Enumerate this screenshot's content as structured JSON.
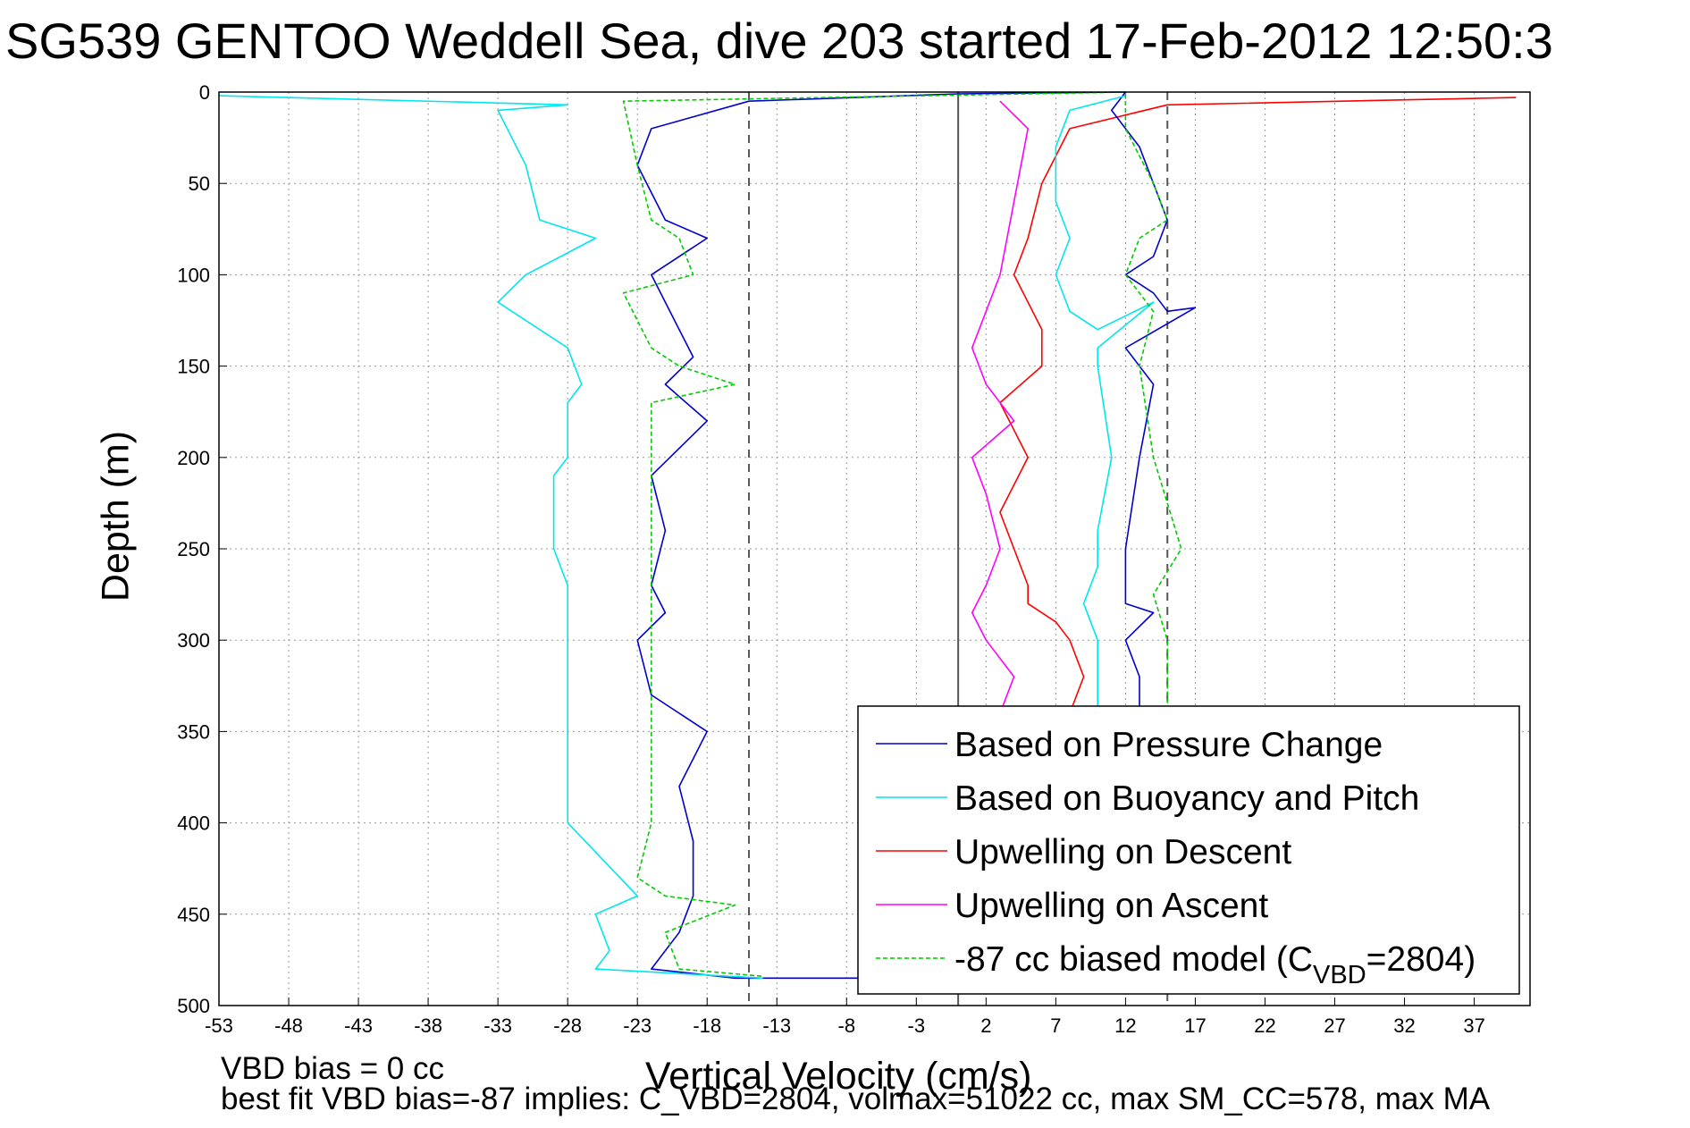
{
  "title": "SG539 GENTOO Weddell Sea, dive 203 started 17-Feb-2012 12:50:3",
  "notes": {
    "line1": "VBD bias = 0 cc",
    "line2": "best fit VBD bias=-87 implies: C_VBD=2804, volmax=51022 cc, max SM_CC=578, max MA"
  },
  "chart_data": {
    "type": "line",
    "title": "SG539 GENTOO Weddell Sea, dive 203 started 17-Feb-2012 12:50:3",
    "xlabel": "Vertical Velocity (cm/s)",
    "ylabel": "Depth (m)",
    "xlim": [
      -53,
      41
    ],
    "ylim": [
      500,
      0
    ],
    "y_reversed": true,
    "grid": true,
    "xticks": [
      "-53",
      "-48",
      "-43",
      "-38",
      "-33",
      "-28",
      "-23",
      "-18",
      "-13",
      "-8",
      "-3",
      "2",
      "7",
      "12",
      "17",
      "22",
      "27",
      "32",
      "37"
    ],
    "yticks": [
      "0",
      "50",
      "100",
      "150",
      "200",
      "250",
      "300",
      "350",
      "400",
      "450",
      "500"
    ],
    "reference_lines": [
      {
        "x": -15,
        "style": "dashed",
        "color": "#555555"
      },
      {
        "x": 0,
        "style": "solid",
        "color": "#555555"
      },
      {
        "x": 15,
        "style": "dashed",
        "color": "#555555"
      }
    ],
    "legend_position": "lower-right",
    "series": [
      {
        "name": "Based on Pressure Change",
        "color": "#0000cc",
        "dash": "solid",
        "x": [
          12,
          0,
          -15,
          -22,
          -23,
          -21,
          -18,
          -22,
          -20,
          -19,
          -21,
          -18,
          -22,
          -21,
          -22,
          -21,
          -23,
          -22,
          -18,
          -20,
          -19,
          -19,
          -20,
          -22,
          -16,
          -7
        ],
        "y": [
          0,
          1,
          5,
          20,
          40,
          70,
          80,
          100,
          130,
          145,
          160,
          180,
          210,
          240,
          270,
          285,
          300,
          330,
          350,
          380,
          410,
          440,
          460,
          480,
          485,
          485
        ]
      },
      {
        "name": "Based on Buoyancy and Pitch",
        "color": "#00e5ee",
        "dash": "solid",
        "x": [
          -53,
          -28,
          -33,
          -31,
          -30,
          -26,
          -31,
          -33,
          -28,
          -27,
          -28,
          -28,
          -29,
          -29,
          -28,
          -28,
          -28,
          -23,
          -26,
          -25,
          -26,
          -14
        ],
        "y": [
          2,
          7,
          10,
          40,
          70,
          80,
          100,
          115,
          140,
          160,
          170,
          200,
          210,
          250,
          270,
          300,
          400,
          440,
          450,
          470,
          480,
          485
        ]
      },
      {
        "name": "Upwelling on Descent",
        "color": "#ff0000",
        "dash": "solid",
        "x": [
          40,
          15,
          8,
          6,
          5,
          4,
          6,
          6,
          3,
          5,
          3,
          4,
          5,
          5,
          7,
          8,
          9,
          8,
          8
        ],
        "y": [
          3,
          7,
          20,
          50,
          80,
          100,
          130,
          150,
          170,
          200,
          230,
          250,
          270,
          280,
          290,
          300,
          320,
          340,
          350
        ]
      },
      {
        "name": "Upwelling on Ascent",
        "color": "#ff00ff",
        "dash": "solid",
        "x": [
          3,
          5,
          4,
          3,
          1,
          2,
          4,
          1,
          2,
          3,
          2,
          1,
          2,
          4,
          3
        ],
        "y": [
          5,
          20,
          60,
          100,
          140,
          160,
          180,
          200,
          220,
          250,
          270,
          285,
          300,
          320,
          340
        ]
      },
      {
        "name": "-87 cc biased model (C_VBD=2804)",
        "color": "#00cc00",
        "dash": "dashed",
        "x": [
          12,
          -24,
          -23,
          -22,
          -20,
          -19,
          -24,
          -22,
          -20,
          -16,
          -22,
          -22,
          -22,
          -22,
          -22,
          -22,
          -23,
          -21,
          -16,
          -21,
          -20,
          -14
        ],
        "y": [
          0,
          5,
          40,
          70,
          80,
          100,
          110,
          140,
          150,
          160,
          170,
          250,
          270,
          300,
          350,
          400,
          430,
          440,
          445,
          460,
          480,
          484
        ]
      },
      {
        "name": "",
        "color": "#0000cc",
        "dash": "solid",
        "x": [
          12,
          11,
          13,
          14,
          15,
          14,
          12,
          14,
          15,
          17,
          12,
          14,
          13,
          12,
          12,
          14,
          12,
          13,
          13
        ],
        "y": [
          0,
          10,
          30,
          50,
          70,
          90,
          100,
          110,
          120,
          118,
          140,
          160,
          200,
          250,
          280,
          285,
          300,
          320,
          340
        ]
      },
      {
        "name": "",
        "color": "#00e5ee",
        "dash": "solid",
        "x": [
          12,
          8,
          7,
          7,
          8,
          7,
          8,
          10,
          14,
          10,
          10,
          11,
          10,
          10,
          9,
          10,
          10,
          10
        ],
        "y": [
          2,
          10,
          30,
          60,
          80,
          100,
          120,
          130,
          115,
          140,
          150,
          200,
          240,
          260,
          280,
          300,
          320,
          350
        ]
      },
      {
        "name": "",
        "color": "#00cc00",
        "dash": "dashed",
        "x": [
          12,
          12,
          14,
          15,
          13,
          12,
          14,
          13,
          14,
          16,
          14,
          15,
          15
        ],
        "y": [
          1,
          20,
          50,
          70,
          80,
          100,
          120,
          150,
          200,
          250,
          275,
          300,
          340
        ]
      }
    ],
    "legend": [
      "Based on Pressure Change",
      "Based on Buoyancy and Pitch",
      "Upwelling on Descent",
      "Upwelling on Ascent",
      "-87 cc biased model (C"
    ],
    "legend_subscript": "VBD",
    "legend_tail": "=2804)"
  }
}
